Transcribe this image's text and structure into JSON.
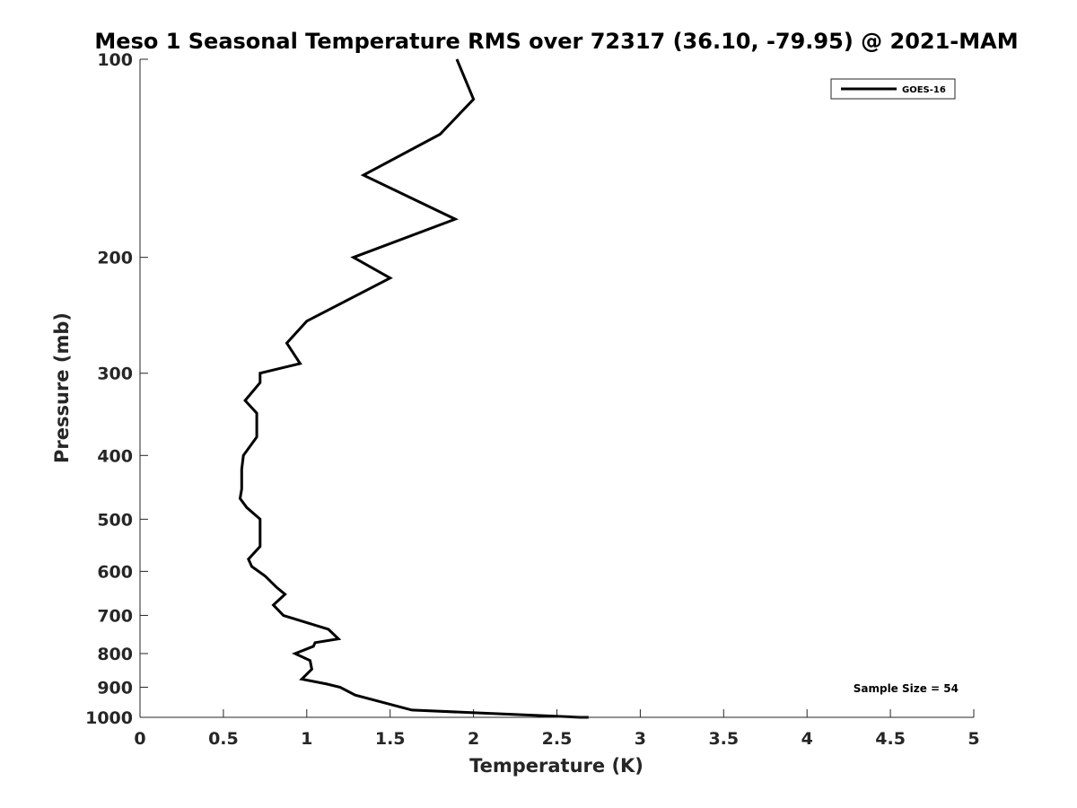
{
  "chart_data": {
    "type": "line",
    "title": "Meso 1 Seasonal Temperature RMS over 72317 (36.10, -79.95) @ 2021-MAM",
    "xlabel": "Temperature (K)",
    "ylabel": "Pressure (mb)",
    "xlim": [
      0,
      5
    ],
    "ylim": [
      100,
      1000
    ],
    "y_scale": "log",
    "y_reversed": true,
    "x_ticks": [
      "0",
      "0.5",
      "1",
      "1.5",
      "2",
      "2.5",
      "3",
      "3.5",
      "4",
      "4.5",
      "5"
    ],
    "y_ticks": [
      "100",
      "200",
      "300",
      "400",
      "500",
      "600",
      "700",
      "800",
      "900",
      "1000"
    ],
    "grid": false,
    "legend": {
      "position": "top-right",
      "entries": [
        "GOES-16"
      ]
    },
    "annotation": "Sample Size = 54",
    "series": [
      {
        "name": "GOES-16",
        "color": "#000000",
        "x": [
          1.9,
          2.0,
          1.8,
          1.34,
          1.89,
          1.28,
          1.5,
          1.0,
          0.88,
          0.96,
          0.72,
          0.72,
          0.63,
          0.7,
          0.7,
          0.62,
          0.61,
          0.61,
          0.6,
          0.64,
          0.72,
          0.72,
          0.65,
          0.67,
          0.75,
          0.82,
          0.87,
          0.8,
          0.86,
          1.13,
          1.19,
          1.05,
          1.04,
          0.93,
          1.02,
          1.03,
          0.97,
          1.12,
          1.2,
          1.29,
          1.63,
          2.64,
          2.69
        ],
        "y": [
          100,
          115,
          130,
          150,
          175,
          200,
          215,
          250,
          270,
          290,
          300,
          310,
          330,
          345,
          375,
          400,
          420,
          450,
          465,
          480,
          500,
          550,
          575,
          590,
          610,
          635,
          650,
          675,
          700,
          735,
          760,
          770,
          780,
          800,
          820,
          845,
          875,
          890,
          900,
          925,
          975,
          1000,
          1000
        ]
      }
    ]
  }
}
